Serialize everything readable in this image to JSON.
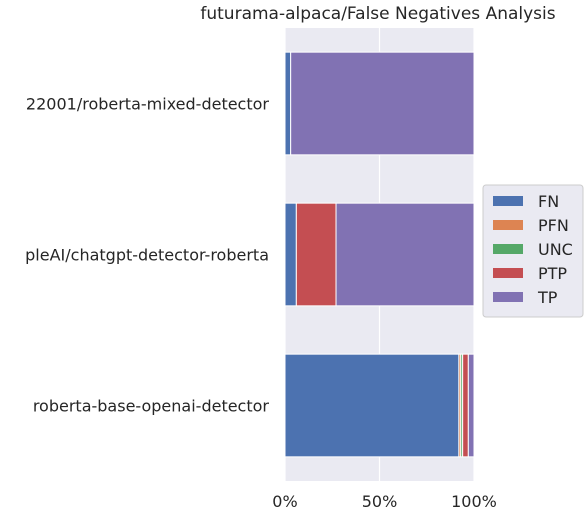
{
  "chart_data": {
    "type": "bar",
    "orientation": "horizontal",
    "stacked": true,
    "title": "futurama-alpaca/False Negatives Analysis",
    "xlabel": "",
    "ylabel": "",
    "xlim": [
      0,
      100
    ],
    "x_ticks": [
      "0%",
      "50%",
      "100%"
    ],
    "grid": true,
    "legend_position": "right",
    "categories": [
      "22001/roberta-mixed-detector",
      "pleAI/chatgpt-detector-roberta",
      "roberta-base-openai-detector"
    ],
    "series": [
      {
        "name": "FN",
        "color": "#4c72b0",
        "values": [
          3,
          6,
          92
        ]
      },
      {
        "name": "PFN",
        "color": "#dd8452",
        "values": [
          0,
          0,
          1
        ]
      },
      {
        "name": "UNC",
        "color": "#55a868",
        "values": [
          0,
          0,
          1
        ]
      },
      {
        "name": "PTP",
        "color": "#c44e52",
        "values": [
          0,
          21,
          3
        ]
      },
      {
        "name": "TP",
        "color": "#8172b3",
        "values": [
          97,
          73,
          3
        ]
      }
    ]
  }
}
